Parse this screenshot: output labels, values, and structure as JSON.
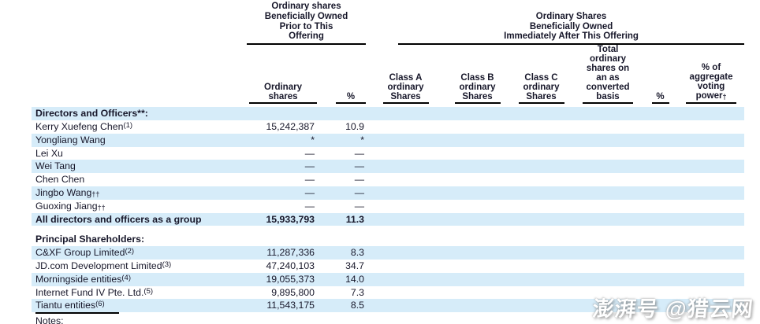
{
  "colors": {
    "row_shade": "#d6ecf9",
    "text": "#17172a",
    "rule": "#000000"
  },
  "header": {
    "group1_lines": [
      "Ordinary shares",
      "Beneficially Owned",
      "Prior to This",
      "Offering"
    ],
    "group2_lines": [
      "Ordinary Shares",
      "Beneficially Owned",
      "Immediately After This Offering"
    ],
    "columns": [
      {
        "lines": [
          "Ordinary",
          "shares"
        ]
      },
      {
        "lines": [
          "%"
        ]
      },
      {
        "lines": [
          "Class A",
          "ordinary",
          "Shares"
        ]
      },
      {
        "lines": [
          "Class B",
          "ordinary",
          "Shares"
        ]
      },
      {
        "lines": [
          "Class C",
          "ordinary",
          "Shares"
        ]
      },
      {
        "lines": [
          "Total",
          "ordinary",
          "shares on",
          "an as",
          "converted",
          "basis"
        ]
      },
      {
        "lines": [
          "%"
        ]
      },
      {
        "lines": [
          "% of",
          "aggregate",
          "voting",
          "power"
        ],
        "subscript": "†"
      }
    ]
  },
  "rows": [
    {
      "label": "Directors and Officers**:",
      "sup": "",
      "sub": "",
      "bold": true,
      "shaded": true,
      "shares": "",
      "pct": ""
    },
    {
      "label": "Kerry Xuefeng Chen",
      "sup": "(1)",
      "sub": "",
      "bold": false,
      "shaded": false,
      "shares": "15,242,387",
      "pct": "10.9"
    },
    {
      "label": "Yongliang Wang",
      "sup": "",
      "sub": "",
      "bold": false,
      "shaded": true,
      "shares": "*",
      "pct": "*"
    },
    {
      "label": "Lei Xu",
      "sup": "",
      "sub": "",
      "bold": false,
      "shaded": false,
      "shares": "—",
      "pct": "—"
    },
    {
      "label": "Wei Tang",
      "sup": "",
      "sub": "",
      "bold": false,
      "shaded": true,
      "shares": "—",
      "pct": "—"
    },
    {
      "label": "Chen Chen",
      "sup": "",
      "sub": "",
      "bold": false,
      "shaded": false,
      "shares": "—",
      "pct": "—"
    },
    {
      "label": "Jingbo Wang",
      "sup": "",
      "sub": "††",
      "bold": false,
      "shaded": true,
      "shares": "—",
      "pct": "—"
    },
    {
      "label": "Guoxing Jiang",
      "sup": "",
      "sub": "††",
      "bold": false,
      "shaded": false,
      "shares": "—",
      "pct": "—"
    },
    {
      "label": "All directors and officers as a group",
      "sup": "",
      "sub": "",
      "bold": true,
      "shaded": true,
      "shares": "15,933,793",
      "pct": "11.3"
    },
    {
      "spacer": true
    },
    {
      "label": "Principal Shareholders:",
      "sup": "",
      "sub": "",
      "bold": true,
      "shaded": false,
      "shares": "",
      "pct": ""
    },
    {
      "label": "C&XF Group Limited",
      "sup": "(2)",
      "sub": "",
      "bold": false,
      "shaded": true,
      "shares": "11,287,336",
      "pct": "8.3"
    },
    {
      "label": "JD.com Development Limited",
      "sup": "(3)",
      "sub": "",
      "bold": false,
      "shaded": false,
      "shares": "47,240,103",
      "pct": "34.7"
    },
    {
      "label": "Morningside entities",
      "sup": "(4)",
      "sub": "",
      "bold": false,
      "shaded": true,
      "shares": "19,055,373",
      "pct": "14.0"
    },
    {
      "label": "Internet Fund IV Pte. Ltd.",
      "sup": "(5)",
      "sub": "",
      "bold": false,
      "shaded": false,
      "shares": "9,895,800",
      "pct": "7.3"
    },
    {
      "label": "Tiantu entities",
      "sup": "(6)",
      "sub": "",
      "bold": false,
      "shaded": true,
      "shares": "11,543,175",
      "pct": "8.5"
    }
  ],
  "footer": {
    "notes_label": "Notes:"
  },
  "watermark": {
    "text": "澎湃号 @猎云网"
  }
}
